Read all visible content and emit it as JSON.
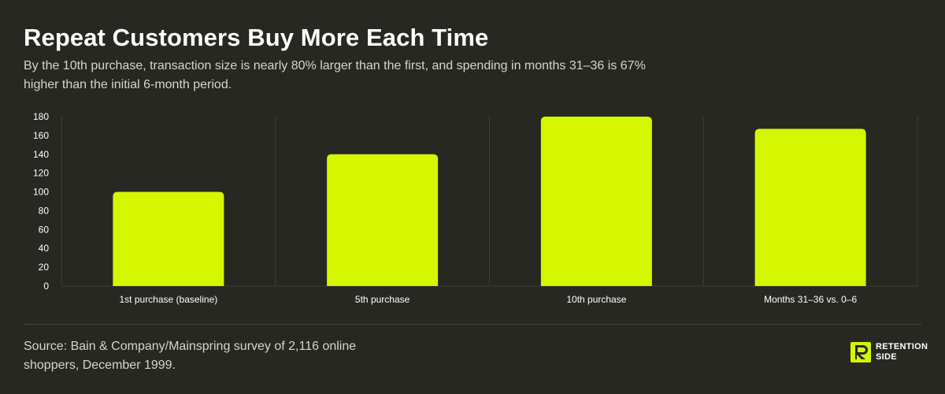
{
  "header": {
    "title": "Repeat Customers Buy More Each Time",
    "subtitle": "By the 10th purchase, transaction size is nearly 80% larger than the first, and spending in months 31–36 is 67% higher than the initial 6-month period."
  },
  "footer": {
    "source": "Source: Bain & Company/Mainspring survey of 2,116 online shoppers, December 1999.",
    "logo_line1": "RETENTION",
    "logo_line2": "SIDE"
  },
  "colors": {
    "bar": "#d4f700",
    "background": "#272822",
    "grid": "#3d3e37"
  },
  "chart_data": {
    "type": "bar",
    "categories": [
      "1st purchase (baseline)",
      "5th purchase",
      "10th purchase",
      "Months 31–36 vs. 0–6"
    ],
    "values": [
      100,
      140,
      180,
      167
    ],
    "yticks": [
      0,
      20,
      40,
      60,
      80,
      100,
      120,
      140,
      160,
      180
    ],
    "ylim": [
      0,
      180
    ],
    "title": "",
    "xlabel": "",
    "ylabel": "",
    "grid": "vertical separators"
  }
}
